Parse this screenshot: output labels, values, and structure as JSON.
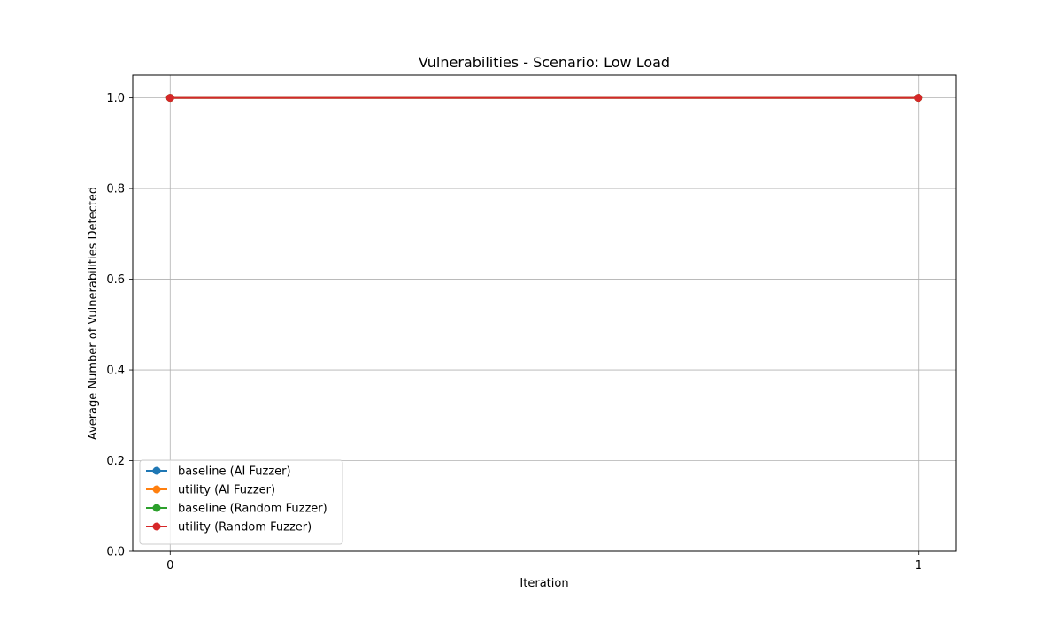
{
  "chart_data": {
    "type": "line",
    "title": "Vulnerabilities - Scenario: Low Load",
    "xlabel": "Iteration",
    "ylabel": "Average Number of Vulnerabilities Detected",
    "x": [
      0,
      1
    ],
    "xticks": [
      0,
      1
    ],
    "xtick_labels": [
      "0",
      "1"
    ],
    "xlim": [
      -0.05,
      1.05
    ],
    "ylim": [
      0,
      1.05
    ],
    "yticks": [
      0,
      0.2,
      0.4,
      0.6,
      0.8,
      1.0
    ],
    "ytick_labels": [
      "0.0",
      "0.2",
      "0.4",
      "0.6",
      "0.8",
      "1.0"
    ],
    "grid": true,
    "legend_position": "lower-left",
    "series": [
      {
        "name": "baseline (AI Fuzzer)",
        "color": "#1f77b4",
        "marker": "circle",
        "values": [
          1.0,
          1.0
        ]
      },
      {
        "name": "utility (AI Fuzzer)",
        "color": "#ff7f0e",
        "marker": "circle",
        "values": [
          1.0,
          1.0
        ]
      },
      {
        "name": "baseline (Random Fuzzer)",
        "color": "#2ca02c",
        "marker": "circle",
        "values": [
          1.0,
          1.0
        ]
      },
      {
        "name": "utility (Random Fuzzer)",
        "color": "#d62728",
        "marker": "circle",
        "values": [
          1.0,
          1.0
        ]
      }
    ]
  }
}
